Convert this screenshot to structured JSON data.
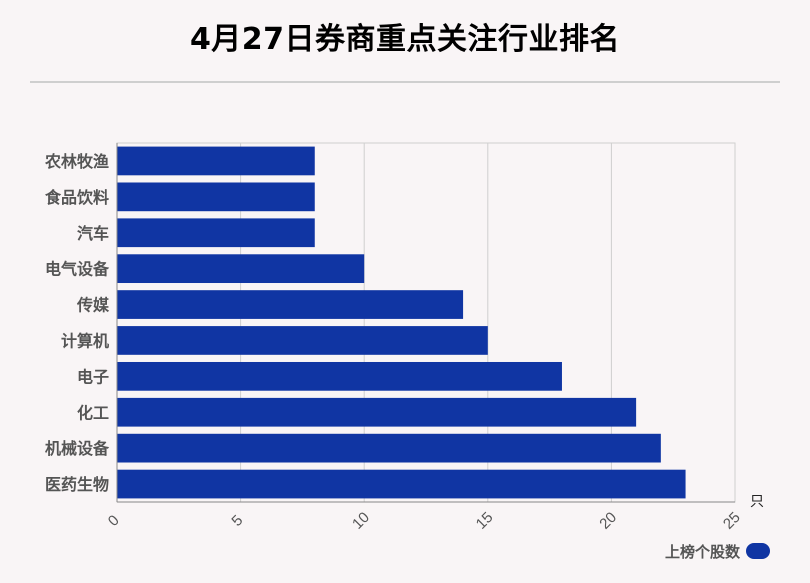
{
  "title": "4月27日券商重点关注行业排名",
  "chart_data": {
    "type": "bar",
    "orientation": "horizontal",
    "categories": [
      "农林牧渔",
      "食品饮料",
      "汽车",
      "电气设备",
      "传媒",
      "计算机",
      "电子",
      "化工",
      "机械设备",
      "医药生物"
    ],
    "series": [
      {
        "name": "上榜个股数",
        "values": [
          8,
          8,
          8,
          10,
          14,
          15,
          18,
          21,
          22,
          23
        ]
      }
    ],
    "xlim": [
      0,
      25
    ],
    "xticks": [
      0,
      5,
      10,
      15,
      20,
      25
    ],
    "xunit": "只",
    "grid": true,
    "legend_position": "bottom-right",
    "bar_color": "#1035a3"
  }
}
